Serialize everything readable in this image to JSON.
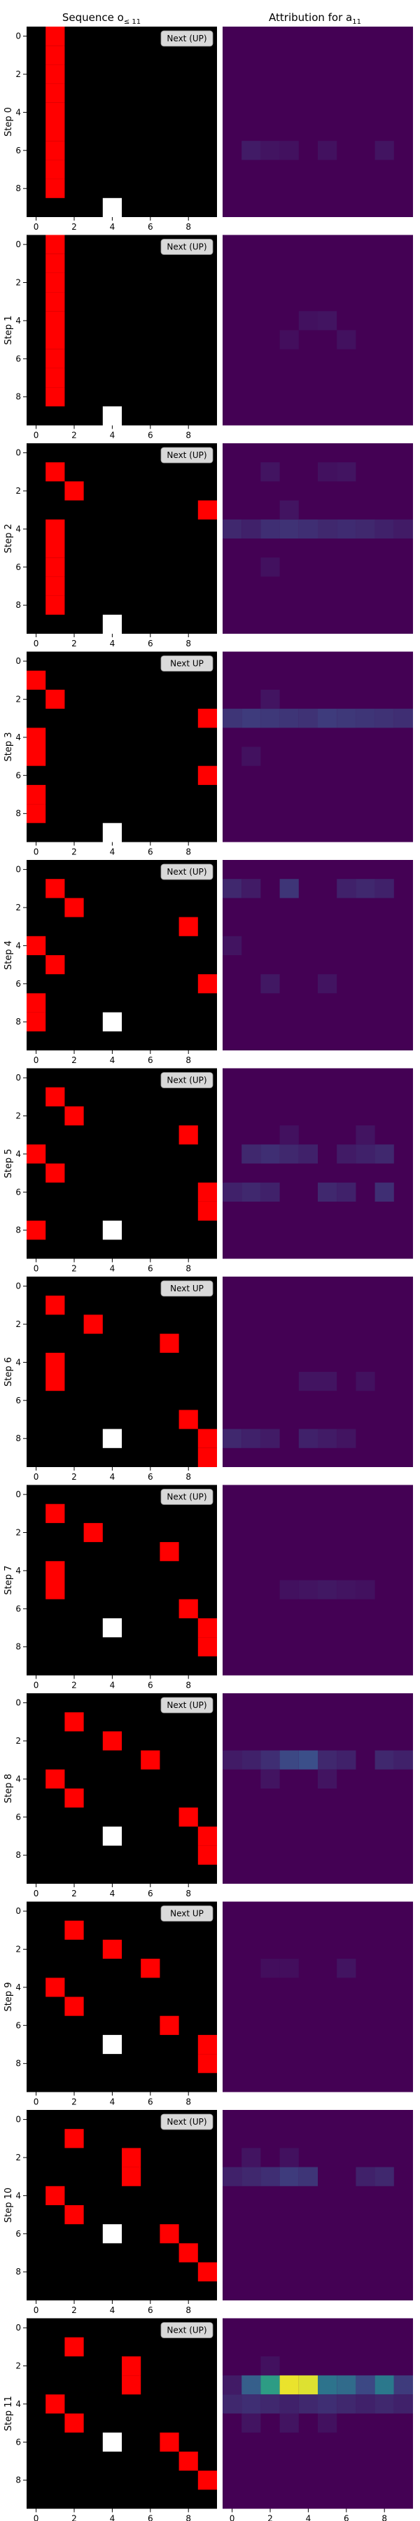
{
  "titles": {
    "left": "Sequence o",
    "left_sub": "≤ 11",
    "right": "Attribution for a",
    "right_sub": "11"
  },
  "tick_values": [
    "0",
    "2",
    "4",
    "6",
    "8"
  ],
  "colors": {
    "background": "#000000",
    "snake": "#ff0000",
    "food": "#ffffff",
    "attr_base": "#440154",
    "badge": "#d9d9d9"
  },
  "chart_data": {
    "type": "heatmap",
    "grid_size": 10,
    "colormap": "viridis",
    "steps": [
      {
        "label": "Step 0",
        "next_label": "Next (UP)",
        "snake": [
          [
            1,
            0
          ],
          [
            1,
            1
          ],
          [
            1,
            2
          ],
          [
            1,
            3
          ],
          [
            1,
            4
          ],
          [
            1,
            5
          ],
          [
            1,
            6
          ],
          [
            1,
            7
          ],
          [
            1,
            8
          ]
        ],
        "food": [
          4,
          9
        ],
        "hot": [
          [
            1,
            6,
            0.08
          ],
          [
            2,
            6,
            0.06
          ],
          [
            3,
            6,
            0.05
          ],
          [
            5,
            6,
            0.05
          ],
          [
            8,
            6,
            0.06
          ]
        ]
      },
      {
        "label": "Step 1",
        "next_label": "Next (UP)",
        "snake": [
          [
            1,
            0
          ],
          [
            1,
            1
          ],
          [
            1,
            2
          ],
          [
            1,
            3
          ],
          [
            1,
            4
          ],
          [
            1,
            5
          ],
          [
            1,
            6
          ],
          [
            1,
            7
          ],
          [
            1,
            8
          ]
        ],
        "food": [
          4,
          9
        ],
        "hot": [
          [
            4,
            4,
            0.05
          ],
          [
            5,
            4,
            0.06
          ],
          [
            6,
            5,
            0.05
          ],
          [
            3,
            5,
            0.04
          ]
        ]
      },
      {
        "label": "Step 2",
        "next_label": "Next (UP)",
        "snake": [
          [
            1,
            1
          ],
          [
            2,
            2
          ],
          [
            9,
            3
          ],
          [
            1,
            4
          ],
          [
            1,
            5
          ],
          [
            1,
            6
          ],
          [
            1,
            7
          ],
          [
            1,
            8
          ]
        ],
        "food": [
          4,
          9
        ],
        "hot": [
          [
            2,
            1,
            0.06
          ],
          [
            5,
            1,
            0.05
          ],
          [
            6,
            1,
            0.06
          ],
          [
            0,
            4,
            0.12
          ],
          [
            1,
            4,
            0.1
          ],
          [
            2,
            4,
            0.14
          ],
          [
            3,
            4,
            0.15
          ],
          [
            4,
            4,
            0.14
          ],
          [
            5,
            4,
            0.12
          ],
          [
            6,
            4,
            0.13
          ],
          [
            7,
            4,
            0.12
          ],
          [
            8,
            4,
            0.1
          ],
          [
            9,
            4,
            0.08
          ],
          [
            3,
            3,
            0.06
          ],
          [
            2,
            6,
            0.05
          ]
        ]
      },
      {
        "label": "Step 3",
        "next_label": "Next UP",
        "snake": [
          [
            0,
            1
          ],
          [
            1,
            2
          ],
          [
            9,
            3
          ],
          [
            0,
            4
          ],
          [
            0,
            5
          ],
          [
            9,
            6
          ],
          [
            0,
            7
          ],
          [
            0,
            8
          ]
        ],
        "food": [
          4,
          9
        ],
        "hot": [
          [
            0,
            3,
            0.16
          ],
          [
            1,
            3,
            0.18
          ],
          [
            2,
            3,
            0.17
          ],
          [
            3,
            3,
            0.16
          ],
          [
            4,
            3,
            0.15
          ],
          [
            5,
            3,
            0.18
          ],
          [
            6,
            3,
            0.17
          ],
          [
            7,
            3,
            0.16
          ],
          [
            8,
            3,
            0.15
          ],
          [
            9,
            3,
            0.14
          ],
          [
            2,
            2,
            0.06
          ],
          [
            1,
            5,
            0.05
          ]
        ]
      },
      {
        "label": "Step 4",
        "next_label": "Next (UP)",
        "snake": [
          [
            1,
            1
          ],
          [
            2,
            2
          ],
          [
            8,
            3
          ],
          [
            0,
            4
          ],
          [
            1,
            5
          ],
          [
            9,
            6
          ],
          [
            0,
            7
          ],
          [
            0,
            8
          ]
        ],
        "food": [
          4,
          8
        ],
        "hot": [
          [
            0,
            1,
            0.12
          ],
          [
            1,
            1,
            0.08
          ],
          [
            3,
            1,
            0.16
          ],
          [
            6,
            1,
            0.1
          ],
          [
            7,
            1,
            0.12
          ],
          [
            8,
            1,
            0.1
          ],
          [
            2,
            6,
            0.07
          ],
          [
            5,
            6,
            0.06
          ],
          [
            0,
            4,
            0.06
          ]
        ]
      },
      {
        "label": "Step 5",
        "next_label": "Next (UP)",
        "snake": [
          [
            1,
            1
          ],
          [
            2,
            2
          ],
          [
            8,
            3
          ],
          [
            0,
            4
          ],
          [
            1,
            5
          ],
          [
            9,
            6
          ],
          [
            9,
            7
          ],
          [
            0,
            8
          ]
        ],
        "food": [
          4,
          8
        ],
        "hot": [
          [
            1,
            4,
            0.12
          ],
          [
            2,
            4,
            0.14
          ],
          [
            3,
            4,
            0.12
          ],
          [
            4,
            4,
            0.1
          ],
          [
            6,
            4,
            0.08
          ],
          [
            7,
            4,
            0.1
          ],
          [
            8,
            4,
            0.12
          ],
          [
            0,
            6,
            0.1
          ],
          [
            1,
            6,
            0.12
          ],
          [
            2,
            6,
            0.1
          ],
          [
            5,
            6,
            0.12
          ],
          [
            6,
            6,
            0.1
          ],
          [
            8,
            6,
            0.14
          ],
          [
            7,
            3,
            0.06
          ],
          [
            3,
            3,
            0.05
          ]
        ]
      },
      {
        "label": "Step 6",
        "next_label": "Next UP",
        "snake": [
          [
            1,
            1
          ],
          [
            3,
            2
          ],
          [
            7,
            3
          ],
          [
            1,
            4
          ],
          [
            1,
            5
          ],
          [
            8,
            7
          ],
          [
            9,
            8
          ],
          [
            9,
            9
          ]
        ],
        "food": [
          4,
          8
        ],
        "hot": [
          [
            0,
            8,
            0.12
          ],
          [
            1,
            8,
            0.1
          ],
          [
            2,
            8,
            0.08
          ],
          [
            4,
            8,
            0.1
          ],
          [
            5,
            8,
            0.08
          ],
          [
            6,
            8,
            0.06
          ],
          [
            4,
            5,
            0.06
          ],
          [
            5,
            5,
            0.06
          ],
          [
            7,
            5,
            0.05
          ]
        ]
      },
      {
        "label": "Step 7",
        "next_label": "Next (UP)",
        "snake": [
          [
            1,
            1
          ],
          [
            3,
            2
          ],
          [
            7,
            3
          ],
          [
            1,
            4
          ],
          [
            1,
            5
          ],
          [
            8,
            6
          ],
          [
            9,
            7
          ],
          [
            9,
            8
          ]
        ],
        "food": [
          4,
          7
        ],
        "hot": [
          [
            4,
            5,
            0.06
          ],
          [
            5,
            5,
            0.07
          ],
          [
            6,
            5,
            0.06
          ],
          [
            3,
            5,
            0.05
          ],
          [
            7,
            5,
            0.05
          ]
        ]
      },
      {
        "label": "Step 8",
        "next_label": "Next (UP)",
        "snake": [
          [
            2,
            1
          ],
          [
            4,
            2
          ],
          [
            6,
            3
          ],
          [
            1,
            4
          ],
          [
            2,
            5
          ],
          [
            8,
            6
          ],
          [
            9,
            7
          ],
          [
            9,
            8
          ]
        ],
        "food": [
          4,
          7
        ],
        "hot": [
          [
            0,
            3,
            0.08
          ],
          [
            1,
            3,
            0.1
          ],
          [
            2,
            3,
            0.14
          ],
          [
            3,
            3,
            0.22
          ],
          [
            4,
            3,
            0.24
          ],
          [
            5,
            3,
            0.12
          ],
          [
            6,
            3,
            0.1
          ],
          [
            8,
            3,
            0.12
          ],
          [
            9,
            3,
            0.1
          ],
          [
            2,
            4,
            0.06
          ],
          [
            5,
            4,
            0.06
          ]
        ]
      },
      {
        "label": "Step 9",
        "next_label": "Next UP",
        "snake": [
          [
            2,
            1
          ],
          [
            4,
            2
          ],
          [
            6,
            3
          ],
          [
            1,
            4
          ],
          [
            2,
            5
          ],
          [
            7,
            6
          ],
          [
            9,
            7
          ],
          [
            9,
            8
          ]
        ],
        "food": [
          4,
          7
        ],
        "hot": [
          [
            6,
            3,
            0.06
          ],
          [
            3,
            3,
            0.04
          ],
          [
            2,
            3,
            0.04
          ]
        ]
      },
      {
        "label": "Step 10",
        "next_label": "Next (UP)",
        "snake": [
          [
            2,
            1
          ],
          [
            5,
            2
          ],
          [
            5,
            3
          ],
          [
            1,
            4
          ],
          [
            2,
            5
          ],
          [
            7,
            6
          ],
          [
            8,
            7
          ],
          [
            9,
            8
          ]
        ],
        "food": [
          4,
          6
        ],
        "hot": [
          [
            0,
            3,
            0.1
          ],
          [
            1,
            3,
            0.12
          ],
          [
            2,
            3,
            0.14
          ],
          [
            3,
            3,
            0.18
          ],
          [
            4,
            3,
            0.16
          ],
          [
            7,
            3,
            0.1
          ],
          [
            8,
            3,
            0.12
          ],
          [
            1,
            2,
            0.06
          ],
          [
            3,
            2,
            0.05
          ]
        ]
      },
      {
        "label": "Step 11",
        "next_label": "Next (UP)",
        "snake": [
          [
            2,
            1
          ],
          [
            5,
            2
          ],
          [
            5,
            3
          ],
          [
            1,
            4
          ],
          [
            2,
            5
          ],
          [
            7,
            6
          ],
          [
            8,
            7
          ],
          [
            9,
            8
          ]
        ],
        "food": [
          4,
          6
        ],
        "hot": [
          [
            0,
            3,
            0.08
          ],
          [
            1,
            3,
            0.3
          ],
          [
            2,
            3,
            0.55
          ],
          [
            3,
            3,
            0.97
          ],
          [
            4,
            3,
            0.95
          ],
          [
            5,
            3,
            0.38
          ],
          [
            6,
            3,
            0.35
          ],
          [
            7,
            3,
            0.22
          ],
          [
            8,
            3,
            0.4
          ],
          [
            9,
            3,
            0.18
          ],
          [
            0,
            4,
            0.12
          ],
          [
            1,
            4,
            0.14
          ],
          [
            2,
            4,
            0.12
          ],
          [
            3,
            4,
            0.1
          ],
          [
            4,
            4,
            0.12
          ],
          [
            5,
            4,
            0.14
          ],
          [
            6,
            4,
            0.12
          ],
          [
            7,
            4,
            0.1
          ],
          [
            8,
            4,
            0.12
          ],
          [
            9,
            4,
            0.1
          ],
          [
            1,
            5,
            0.06
          ],
          [
            3,
            5,
            0.06
          ],
          [
            5,
            5,
            0.05
          ],
          [
            2,
            2,
            0.05
          ]
        ]
      }
    ]
  }
}
